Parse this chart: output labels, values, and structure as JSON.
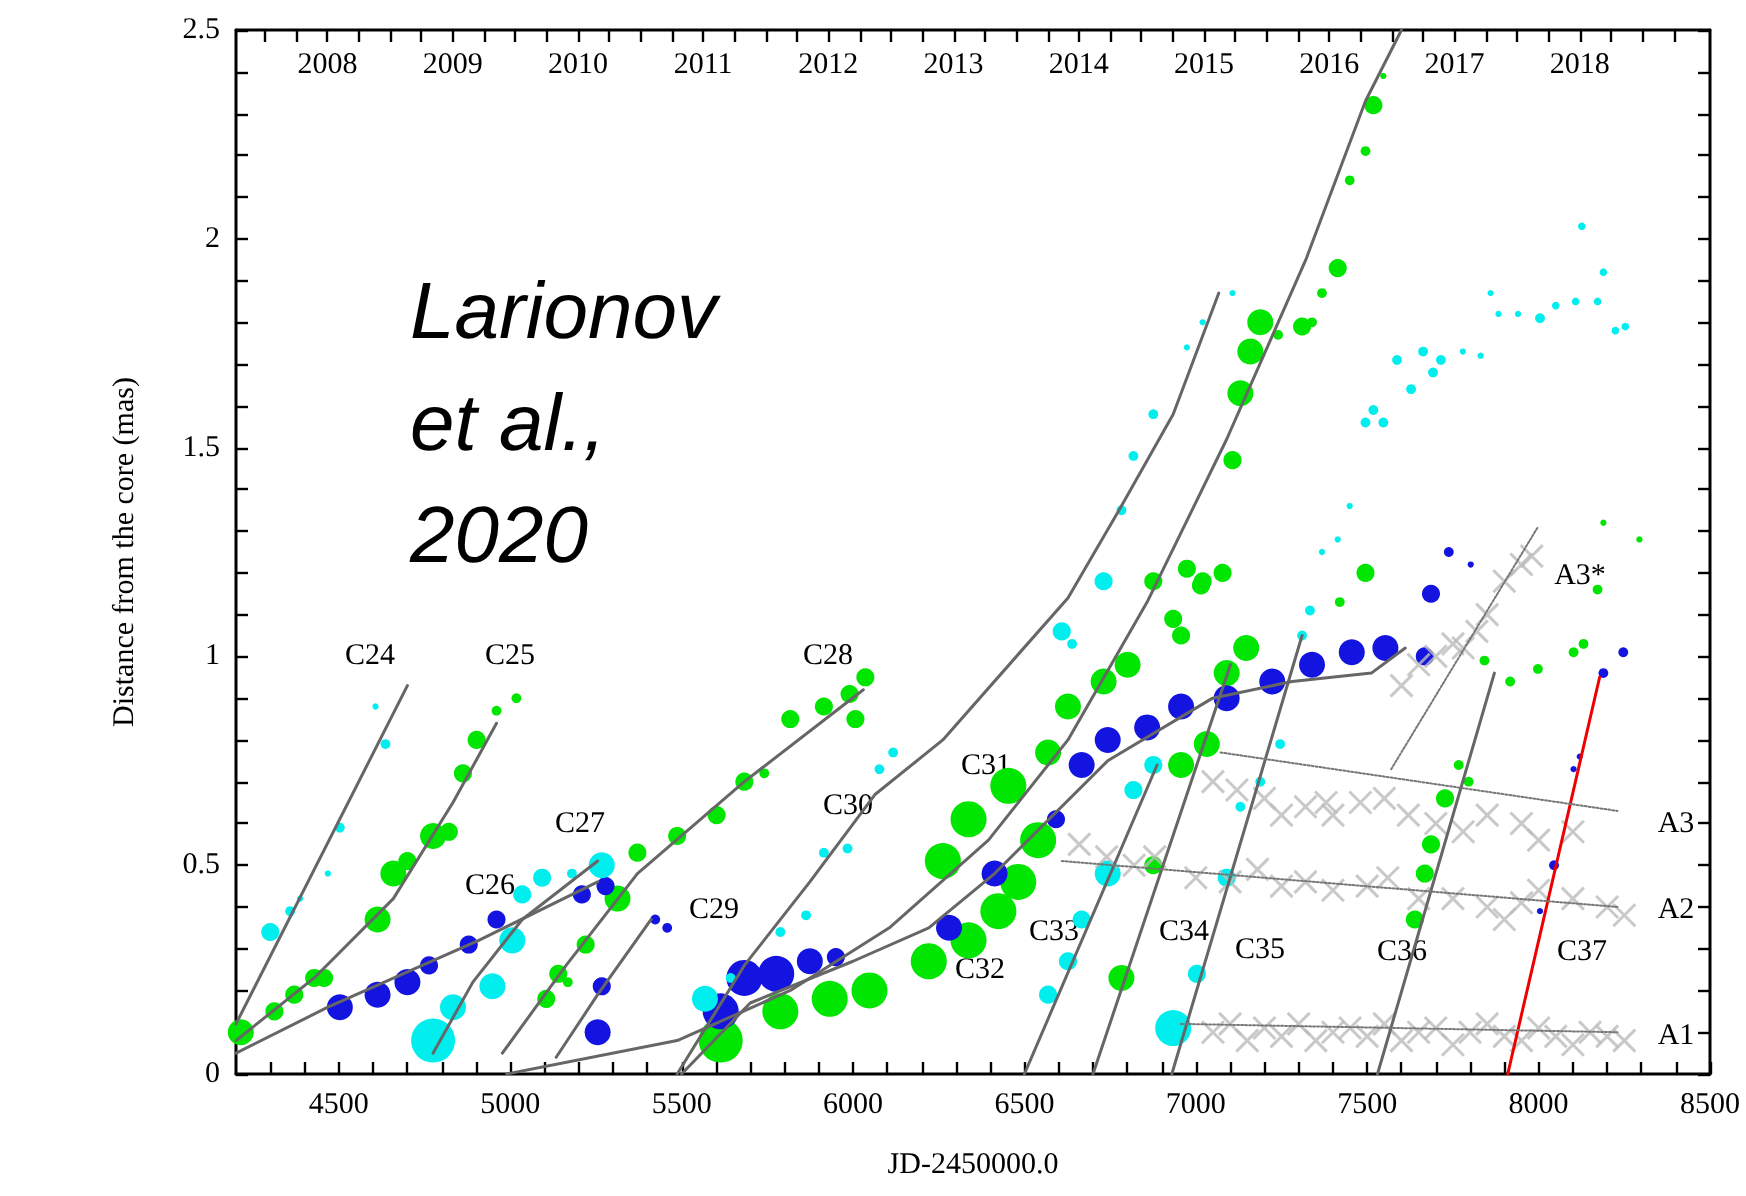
{
  "chart_data": {
    "type": "bubble",
    "xlabel": "JD-2450000.0",
    "ylabel": "Distance from the core (mas)",
    "xlim": [
      4200,
      8500
    ],
    "xticks": [
      {
        "value": 4300,
        "label": null
      },
      {
        "value": 4400,
        "label": null
      },
      4500,
      {
        "value": 4600,
        "label": null
      },
      {
        "value": 4700,
        "label": null
      },
      {
        "value": 4800,
        "label": null
      },
      {
        "value": 4900,
        "label": null
      },
      5000,
      {
        "value": 5100,
        "label": null
      },
      {
        "value": 5200,
        "label": null
      },
      {
        "value": 5300,
        "label": null
      },
      {
        "value": 5400,
        "label": null
      },
      5500,
      {
        "value": 5600,
        "label": null
      },
      {
        "value": 5700,
        "label": null
      },
      {
        "value": 5800,
        "label": null
      },
      {
        "value": 5900,
        "label": null
      },
      6000,
      {
        "value": 6100,
        "label": null
      },
      {
        "value": 6200,
        "label": null
      },
      {
        "value": 6300,
        "label": null
      },
      {
        "value": 6400,
        "label": null
      },
      6500,
      {
        "value": 6600,
        "label": null
      },
      {
        "value": 6700,
        "label": null
      },
      {
        "value": 6800,
        "label": null
      },
      {
        "value": 6900,
        "label": null
      },
      7000,
      {
        "value": 7100,
        "label": null
      },
      {
        "value": 7200,
        "label": null
      },
      {
        "value": 7300,
        "label": null
      },
      {
        "value": 7400,
        "label": null
      },
      7500,
      {
        "value": 7600,
        "label": null
      },
      {
        "value": 7700,
        "label": null
      },
      {
        "value": 7800,
        "label": null
      },
      {
        "value": 7900,
        "label": null
      },
      8000,
      {
        "value": 8100,
        "label": null
      },
      {
        "value": 8200,
        "label": null
      },
      {
        "value": 8300,
        "label": null
      },
      {
        "value": 8400,
        "label": null
      },
      8500
    ],
    "ylim": [
      0,
      2.5
    ],
    "yticks": [
      0,
      {
        "value": 0.1,
        "label": null
      },
      {
        "value": 0.2,
        "label": null
      },
      {
        "value": 0.3,
        "label": null
      },
      {
        "value": 0.4,
        "label": null
      },
      0.5,
      {
        "value": 0.6,
        "label": null
      },
      {
        "value": 0.7,
        "label": null
      },
      {
        "value": 0.8,
        "label": null
      },
      {
        "value": 0.9,
        "label": null
      },
      1,
      {
        "value": 1.1,
        "label": null
      },
      {
        "value": 1.2,
        "label": null
      },
      {
        "value": 1.3,
        "label": null
      },
      {
        "value": 1.4,
        "label": null
      },
      1.5,
      {
        "value": 1.6,
        "label": null
      },
      {
        "value": 1.7,
        "label": null
      },
      {
        "value": 1.8,
        "label": null
      },
      {
        "value": 1.9,
        "label": null
      },
      2,
      {
        "value": 2.1,
        "label": null
      },
      {
        "value": 2.2,
        "label": null
      },
      {
        "value": 2.3,
        "label": null
      },
      {
        "value": 2.4,
        "label": null
      },
      2.5
    ],
    "x2lim": [
      2007.27,
      2019.04
    ],
    "x2ticks": [
      {
        "value": 2007.5,
        "label": null
      },
      {
        "value": 2007.75,
        "label": null
      },
      2008,
      {
        "value": 2008.25,
        "label": null
      },
      {
        "value": 2008.5,
        "label": null
      },
      {
        "value": 2008.75,
        "label": null
      },
      2009,
      {
        "value": 2009.25,
        "label": null
      },
      {
        "value": 2009.5,
        "label": null
      },
      {
        "value": 2009.75,
        "label": null
      },
      2010,
      {
        "value": 2010.25,
        "label": null
      },
      {
        "value": 2010.5,
        "label": null
      },
      {
        "value": 2010.75,
        "label": null
      },
      2011,
      {
        "value": 2011.25,
        "label": null
      },
      {
        "value": 2011.5,
        "label": null
      },
      {
        "value": 2011.75,
        "label": null
      },
      2012,
      {
        "value": 2012.25,
        "label": null
      },
      {
        "value": 2012.5,
        "label": null
      },
      {
        "value": 2012.75,
        "label": null
      },
      2013,
      {
        "value": 2013.25,
        "label": null
      },
      {
        "value": 2013.5,
        "label": null
      },
      {
        "value": 2013.75,
        "label": null
      },
      2014,
      {
        "value": 2014.25,
        "label": null
      },
      {
        "value": 2014.5,
        "label": null
      },
      {
        "value": 2014.75,
        "label": null
      },
      2015,
      {
        "value": 2015.25,
        "label": null
      },
      {
        "value": 2015.5,
        "label": null
      },
      {
        "value": 2015.75,
        "label": null
      },
      2016,
      {
        "value": 2016.25,
        "label": null
      },
      {
        "value": 2016.5,
        "label": null
      },
      {
        "value": 2016.75,
        "label": null
      },
      2017,
      {
        "value": 2017.25,
        "label": null
      },
      {
        "value": 2017.5,
        "label": null
      },
      {
        "value": 2017.75,
        "label": null
      },
      2018,
      {
        "value": 2018.25,
        "label": null
      },
      {
        "value": 2018.5,
        "label": null
      },
      {
        "value": 2018.75,
        "label": null
      }
    ],
    "series": [
      {
        "color": "#00e600",
        "x": [
          4214,
          4312,
          4370,
          4428,
          4457,
          4613,
          4659,
          4700,
          4775,
          4821,
          4862,
          4902,
          4960,
          5018,
          5105,
          5140,
          5168,
          5220,
          5313,
          5371,
          5487,
          5602,
          5683,
          5741,
          5817,
          5915,
          5990,
          6036,
          6007,
          5614,
          5788,
          5932,
          6048,
          6221,
          6337,
          6424,
          6482,
          6540,
          6262,
          6337,
          6453,
          6569,
          6627,
          6731,
          6801,
          6934,
          6957,
          7015,
          6876,
          6974,
          7020,
          7078,
          7107,
          7130,
          7159,
          7188,
          7240,
          7310,
          7339,
          7368,
          7414,
          7449,
          7495,
          7518,
          7547,
          7147,
          7090,
          7032,
          6957,
          6876,
          6783,
          7420,
          7495,
          7767,
          7796,
          7727,
          7686,
          7668,
          7639,
          7842,
          7917,
          7998,
          8102,
          8131,
          8172,
          8189,
          8294
        ],
        "values": [
          0.1,
          0.15,
          0.19,
          0.23,
          0.23,
          0.37,
          0.48,
          0.51,
          0.57,
          0.58,
          0.72,
          0.8,
          0.87,
          0.9,
          0.18,
          0.24,
          0.22,
          0.31,
          0.42,
          0.53,
          0.57,
          0.62,
          0.7,
          0.72,
          0.85,
          0.88,
          0.91,
          0.95,
          0.85,
          0.08,
          0.15,
          0.18,
          0.2,
          0.27,
          0.32,
          0.39,
          0.46,
          0.56,
          0.51,
          0.61,
          0.69,
          0.77,
          0.88,
          0.94,
          0.98,
          1.09,
          1.05,
          1.17,
          1.18,
          1.21,
          1.18,
          1.2,
          1.47,
          1.63,
          1.73,
          1.8,
          1.77,
          1.79,
          1.8,
          1.87,
          1.93,
          2.14,
          2.21,
          2.32,
          2.39,
          1.02,
          0.96,
          0.79,
          0.74,
          0.5,
          0.23,
          1.13,
          1.2,
          0.74,
          0.7,
          0.66,
          0.55,
          0.48,
          0.37,
          0.99,
          0.94,
          0.97,
          1.01,
          1.03,
          1.16,
          1.32,
          1.28
        ],
        "sizes": [
          0.35,
          0.17,
          0.17,
          0.17,
          0.17,
          0.35,
          0.35,
          0.17,
          0.35,
          0.17,
          0.17,
          0.17,
          0.05,
          0.05,
          0.17,
          0.17,
          0.05,
          0.17,
          0.35,
          0.17,
          0.17,
          0.17,
          0.17,
          0.05,
          0.17,
          0.17,
          0.17,
          0.17,
          0.17,
          1,
          0.67,
          0.67,
          0.67,
          0.67,
          0.67,
          0.67,
          0.67,
          0.67,
          0.67,
          0.67,
          0.67,
          0.35,
          0.35,
          0.35,
          0.35,
          0.17,
          0.17,
          0.17,
          0.17,
          0.17,
          0.17,
          0.17,
          0.17,
          0.35,
          0.35,
          0.35,
          0.05,
          0.17,
          0.05,
          0.05,
          0.17,
          0.05,
          0.05,
          0.17,
          0.02,
          0.35,
          0.35,
          0.35,
          0.35,
          0.17,
          0.35,
          0.05,
          0.17,
          0.05,
          0.05,
          0.17,
          0.17,
          0.17,
          0.17,
          0.05,
          0.05,
          0.05,
          0.05,
          0.05,
          0.05,
          0.02,
          0.02
        ]
      },
      {
        "color": "#1414e0",
        "x": [
          4503,
          4613,
          4700,
          4763,
          4879,
          4960,
          5209,
          5278,
          5267,
          5255,
          5423,
          5458,
          5614,
          5683,
          5776,
          5874,
          5950,
          6280,
          6413,
          6592,
          6667,
          6743,
          6858,
          6957,
          7090,
          7223,
          7339,
          7455,
          7553,
          7668,
          7686,
          7738,
          7802,
          8189,
          8247,
          8120,
          8102,
          8045,
          8004
        ],
        "values": [
          0.16,
          0.19,
          0.22,
          0.26,
          0.31,
          0.37,
          0.43,
          0.45,
          0.21,
          0.1,
          0.37,
          0.35,
          0.15,
          0.23,
          0.24,
          0.27,
          0.28,
          0.35,
          0.48,
          0.61,
          0.74,
          0.8,
          0.83,
          0.88,
          0.9,
          0.94,
          0.98,
          1.01,
          1.02,
          1.0,
          1.15,
          1.25,
          1.22,
          0.96,
          1.01,
          0.76,
          0.73,
          0.5,
          0.39
        ],
        "sizes": [
          0.35,
          0.35,
          0.35,
          0.17,
          0.17,
          0.17,
          0.17,
          0.17,
          0.17,
          0.35,
          0.05,
          0.05,
          0.67,
          0.67,
          0.67,
          0.35,
          0.17,
          0.35,
          0.35,
          0.17,
          0.35,
          0.35,
          0.35,
          0.35,
          0.35,
          0.35,
          0.35,
          0.35,
          0.35,
          0.17,
          0.17,
          0.05,
          0.02,
          0.05,
          0.05,
          0.02,
          0.02,
          0.05,
          0.02
        ]
      },
      {
        "color": "#00eeee",
        "x": [
          4300,
          4358,
          4387,
          4468,
          4503,
          4636,
          4607,
          4775,
          4833,
          4948,
          5006,
          5035,
          5093,
          5180,
          5267,
          5568,
          5643,
          5788,
          5863,
          5915,
          5984,
          6077,
          6117,
          6609,
          6639,
          6876,
          6818,
          6743,
          6667,
          6627,
          6569,
          7246,
          7188,
          7130,
          7090,
          7003,
          6934,
          7333,
          7310,
          6731,
          6783,
          6818,
          6876,
          6974,
          7020,
          7107,
          7449,
          7414,
          7368,
          7495,
          7547,
          7518,
          7628,
          7692,
          7587,
          7663,
          7715,
          7779,
          7831,
          7860,
          7883,
          7940,
          8004,
          8050,
          8108,
          8172,
          8224,
          8253,
          8126,
          8189
        ],
        "values": [
          0.34,
          0.39,
          0.42,
          0.48,
          0.59,
          0.79,
          0.88,
          0.08,
          0.16,
          0.21,
          0.32,
          0.43,
          0.47,
          0.48,
          0.5,
          0.18,
          0.23,
          0.34,
          0.38,
          0.53,
          0.54,
          0.73,
          0.77,
          1.06,
          1.03,
          0.74,
          0.68,
          0.48,
          0.37,
          0.27,
          0.19,
          0.79,
          0.7,
          0.64,
          0.47,
          0.24,
          0.11,
          1.11,
          1.05,
          1.18,
          1.35,
          1.48,
          1.58,
          1.74,
          1.8,
          1.87,
          1.36,
          1.28,
          1.25,
          1.56,
          1.56,
          1.59,
          1.64,
          1.68,
          1.71,
          1.73,
          1.71,
          1.73,
          1.72,
          1.87,
          1.82,
          1.82,
          1.81,
          1.84,
          1.85,
          1.85,
          1.78,
          1.79,
          2.03,
          1.92
        ],
        "sizes": [
          0.17,
          0.05,
          0.02,
          0.02,
          0.05,
          0.05,
          0.02,
          1,
          0.35,
          0.35,
          0.35,
          0.17,
          0.17,
          0.05,
          0.35,
          0.35,
          0.05,
          0.05,
          0.05,
          0.05,
          0.05,
          0.05,
          0.05,
          0.17,
          0.05,
          0.17,
          0.17,
          0.35,
          0.17,
          0.17,
          0.17,
          0.05,
          0.05,
          0.05,
          0.17,
          0.17,
          0.67,
          0.05,
          0.05,
          0.17,
          0.05,
          0.05,
          0.05,
          0.02,
          0.02,
          0.02,
          0.02,
          0.02,
          0.02,
          0.05,
          0.05,
          0.05,
          0.05,
          0.05,
          0.05,
          0.05,
          0.05,
          0.02,
          0.02,
          0.02,
          0.02,
          0.02,
          0.05,
          0.03,
          0.03,
          0.03,
          0.03,
          0.03,
          0.03,
          0.03
        ]
      },
      {
        "type": "scatter",
        "marker": "cross",
        "color": "#bbbbbb",
        "x": [
          7050,
          7100,
          7150,
          7200,
          7250,
          7300,
          7350,
          7400,
          7450,
          7500,
          7550,
          7600,
          7650,
          7700,
          7750,
          7800,
          7850,
          7900,
          7950,
          8000,
          8050,
          8100,
          8150,
          8200,
          8250,
          6660,
          6740,
          6820,
          6880,
          7000,
          7100,
          7180,
          7250,
          7320,
          7400,
          7500,
          7560,
          7650,
          7750,
          7850,
          7900,
          7950,
          8000,
          8100,
          8200,
          8250,
          7050,
          7120,
          7200,
          7250,
          7320,
          7380,
          7400,
          7480,
          7550,
          7620,
          7700,
          7780,
          7850,
          7950,
          8000,
          8100,
          7600,
          7650,
          7700,
          7750,
          7780,
          7820,
          7850,
          7900,
          7950,
          7980
        ],
        "values": [
          0.1,
          0.12,
          0.08,
          0.11,
          0.09,
          0.12,
          0.08,
          0.1,
          0.11,
          0.09,
          0.12,
          0.08,
          0.1,
          0.11,
          0.07,
          0.1,
          0.12,
          0.09,
          0.08,
          0.11,
          0.09,
          0.07,
          0.1,
          0.09,
          0.08,
          0.55,
          0.52,
          0.5,
          0.52,
          0.47,
          0.46,
          0.49,
          0.45,
          0.46,
          0.44,
          0.45,
          0.47,
          0.42,
          0.42,
          0.4,
          0.37,
          0.41,
          0.44,
          0.42,
          0.4,
          0.38,
          0.7,
          0.68,
          0.66,
          0.62,
          0.64,
          0.65,
          0.62,
          0.65,
          0.66,
          0.62,
          0.6,
          0.58,
          0.62,
          0.6,
          0.56,
          0.58,
          0.93,
          0.98,
          1.0,
          1.03,
          1.02,
          1.06,
          1.1,
          1.18,
          1.22,
          1.24
        ]
      },
      {
        "type": "line",
        "color": "#666666",
        "x": [
          4200,
          4700
        ],
        "values": [
          0.12,
          0.93
        ]
      },
      {
        "type": "line",
        "color": "#666666",
        "x": [
          4200,
          4428,
          4659,
          4833,
          4960
        ],
        "values": [
          0.08,
          0.23,
          0.42,
          0.65,
          0.84
        ]
      },
      {
        "type": "line",
        "color": "#666666",
        "x": [
          4200,
          4468,
          4908,
          5255
        ],
        "values": [
          0.05,
          0.16,
          0.32,
          0.46
        ]
      },
      {
        "type": "line",
        "color": "#666666",
        "x": [
          4775,
          4891,
          5035,
          5255
        ],
        "values": [
          0.05,
          0.22,
          0.37,
          0.51
        ]
      },
      {
        "type": "line",
        "color": "#666666",
        "x": [
          4977,
          5163,
          5371,
          5683,
          6030
        ],
        "values": [
          0.05,
          0.26,
          0.48,
          0.7,
          0.92
        ]
      },
      {
        "type": "line",
        "color": "#666666",
        "x": [
          5134,
          5255,
          5411
        ],
        "values": [
          0.04,
          0.19,
          0.37
        ]
      },
      {
        "type": "line",
        "color": "#666666",
        "x": [
          5487,
          5683,
          5874,
          6065,
          6262,
          6627,
          6783,
          6934,
          7067
        ],
        "values": [
          0,
          0.26,
          0.46,
          0.67,
          0.8,
          1.14,
          1.36,
          1.58,
          1.87
        ]
      },
      {
        "type": "line",
        "color": "#666666",
        "x": [
          4990,
          5487,
          5817,
          6106,
          6395,
          6627,
          6858,
          7090,
          7321,
          7495,
          7600
        ],
        "values": [
          0,
          0.08,
          0.2,
          0.35,
          0.56,
          0.8,
          1.13,
          1.52,
          1.95,
          2.33,
          2.5
        ]
      },
      {
        "type": "line",
        "color": "#666666",
        "x": [
          5500,
          5700,
          6000,
          6221,
          6413,
          6743,
          7049,
          7281,
          7512,
          7611
        ],
        "values": [
          0,
          0.17,
          0.27,
          0.35,
          0.48,
          0.75,
          0.9,
          0.94,
          0.96,
          1.02
        ]
      },
      {
        "type": "line",
        "color": "#666666",
        "x": [
          6500,
          6887
        ],
        "values": [
          0,
          0.74
        ]
      },
      {
        "type": "line",
        "color": "#666666",
        "x": [
          6700,
          7101
        ],
        "values": [
          0,
          0.98
        ]
      },
      {
        "type": "line",
        "color": "#666666",
        "x": [
          6930,
          7310
        ],
        "values": [
          0,
          1.05
        ]
      },
      {
        "type": "line",
        "color": "#666666",
        "x": [
          7530,
          7871
        ],
        "values": [
          0,
          0.96
        ]
      },
      {
        "type": "line",
        "color": "#ee0000",
        "x": [
          7910,
          8178
        ],
        "values": [
          0,
          0.95
        ]
      },
      {
        "type": "line",
        "color": "#777777",
        "line_style": "dotted",
        "x": [
          6957,
          8230
        ],
        "values": [
          0.12,
          0.1
        ]
      },
      {
        "type": "line",
        "color": "#777777",
        "line_style": "dotted",
        "x": [
          6609,
          8230
        ],
        "values": [
          0.51,
          0.4
        ]
      },
      {
        "type": "line",
        "color": "#777777",
        "line_style": "dotted",
        "x": [
          7072,
          8230
        ],
        "values": [
          0.77,
          0.63
        ]
      },
      {
        "type": "line",
        "color": "#777777",
        "line_style": "dotted",
        "x": [
          7570,
          7998
        ],
        "values": [
          0.73,
          1.31
        ]
      }
    ],
    "annotations": [
      "Larionov et al., 2020",
      "C24",
      "C25",
      "C26",
      "C27",
      "C28",
      "C29",
      "C30",
      "C31",
      "C32",
      "C33",
      "C34",
      "C35",
      "C36",
      "C37",
      "A1",
      "A2",
      "A3",
      "A3*"
    ]
  }
}
